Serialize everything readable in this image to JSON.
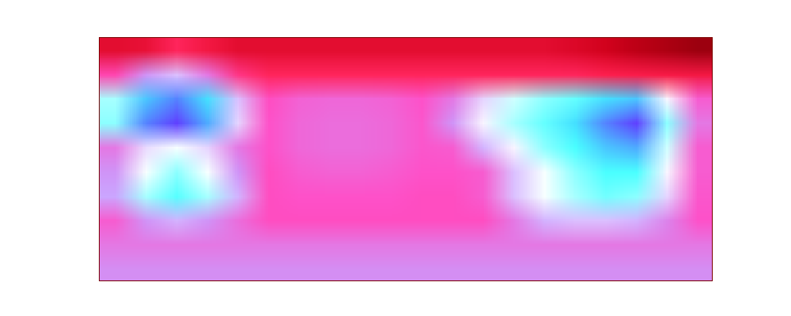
{
  "chart_data": {
    "type": "heatmap",
    "tick_labels": false,
    "zlim": [
      0,
      1
    ],
    "cells": [
      [
        0.2,
        0.22,
        0.3,
        0.25,
        0.2,
        0.2,
        0.2,
        0.2,
        0.2,
        0.2,
        0.2,
        0.2,
        0.2,
        0.2,
        0.2,
        0.18,
        0.15,
        0.12,
        0.1,
        0.08
      ],
      [
        0.4,
        0.55,
        0.62,
        0.5,
        0.35,
        0.3,
        0.3,
        0.3,
        0.3,
        0.3,
        0.3,
        0.3,
        0.3,
        0.3,
        0.3,
        0.3,
        0.28,
        0.27,
        0.26,
        0.25
      ],
      [
        0.78,
        0.9,
        0.95,
        0.88,
        0.62,
        0.42,
        0.46,
        0.47,
        0.47,
        0.46,
        0.43,
        0.5,
        0.65,
        0.75,
        0.8,
        0.83,
        0.88,
        0.9,
        0.7,
        0.45
      ],
      [
        0.8,
        0.95,
        1.0,
        0.92,
        0.65,
        0.43,
        0.47,
        0.48,
        0.48,
        0.47,
        0.44,
        0.55,
        0.7,
        0.78,
        0.83,
        0.88,
        0.95,
        1.0,
        0.8,
        0.5
      ],
      [
        0.5,
        0.66,
        0.72,
        0.65,
        0.5,
        0.43,
        0.47,
        0.48,
        0.48,
        0.47,
        0.44,
        0.45,
        0.6,
        0.7,
        0.8,
        0.85,
        0.9,
        0.92,
        0.75,
        0.45
      ],
      [
        0.55,
        0.72,
        0.8,
        0.72,
        0.55,
        0.42,
        0.45,
        0.46,
        0.46,
        0.45,
        0.43,
        0.43,
        0.45,
        0.62,
        0.72,
        0.8,
        0.85,
        0.85,
        0.7,
        0.45
      ],
      [
        0.58,
        0.78,
        0.84,
        0.78,
        0.6,
        0.42,
        0.43,
        0.43,
        0.43,
        0.43,
        0.42,
        0.42,
        0.45,
        0.62,
        0.72,
        0.78,
        0.82,
        0.8,
        0.65,
        0.44
      ],
      [
        0.45,
        0.55,
        0.6,
        0.55,
        0.48,
        0.42,
        0.42,
        0.42,
        0.42,
        0.42,
        0.42,
        0.42,
        0.42,
        0.5,
        0.6,
        0.62,
        0.62,
        0.6,
        0.52,
        0.43
      ],
      [
        0.5,
        0.5,
        0.5,
        0.5,
        0.5,
        0.5,
        0.5,
        0.5,
        0.5,
        0.5,
        0.5,
        0.5,
        0.5,
        0.5,
        0.5,
        0.5,
        0.5,
        0.5,
        0.5,
        0.5
      ],
      [
        0.54,
        0.54,
        0.54,
        0.54,
        0.54,
        0.54,
        0.54,
        0.54,
        0.54,
        0.54,
        0.54,
        0.54,
        0.54,
        0.54,
        0.54,
        0.54,
        0.54,
        0.54,
        0.54,
        0.54
      ]
    ]
  }
}
